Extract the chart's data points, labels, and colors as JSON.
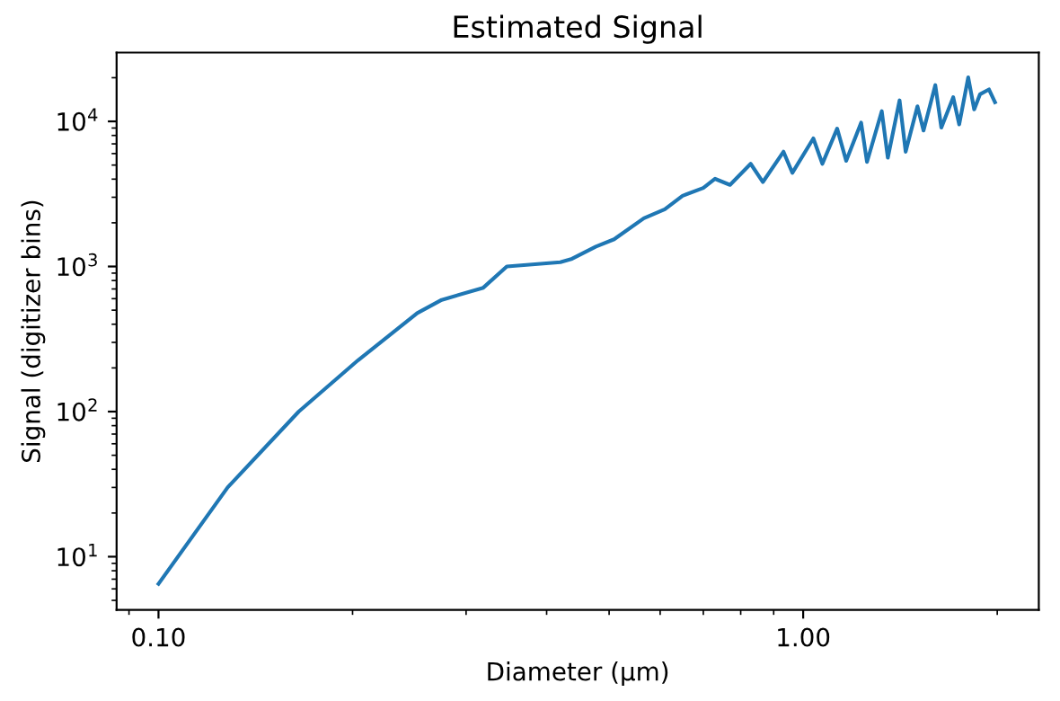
{
  "chart_data": {
    "type": "line",
    "title": "Estimated Signal",
    "xlabel": "Diameter (µm)",
    "ylabel": "Signal (digitizer bins)",
    "log": "xy",
    "x": [
      0.1,
      0.128,
      0.165,
      0.204,
      0.252,
      0.275,
      0.319,
      0.347,
      0.42,
      0.438,
      0.477,
      0.509,
      0.566,
      0.61,
      0.65,
      0.7,
      0.73,
      0.77,
      0.829,
      0.866,
      0.932,
      0.962,
      1.037,
      1.071,
      1.129,
      1.166,
      1.23,
      1.256,
      1.324,
      1.353,
      1.411,
      1.442,
      1.504,
      1.537,
      1.603,
      1.638,
      1.709,
      1.746,
      1.803,
      1.842,
      1.881,
      1.942,
      1.984
    ],
    "series": [
      {
        "color": "#1f77b4",
        "values": [
          6.5,
          30,
          100,
          226,
          477,
          589,
          714,
          1000,
          1070,
          1130,
          1370,
          1540,
          2150,
          2480,
          3070,
          3480,
          4020,
          3650,
          5100,
          3820,
          6180,
          4420,
          7630,
          5100,
          8910,
          5350,
          9800,
          5250,
          11750,
          5620,
          13960,
          6180,
          12700,
          8660,
          17780,
          9070,
          14670,
          9530,
          20100,
          12090,
          15400,
          16600,
          13570
        ]
      }
    ],
    "xlim": [
      0.0861,
      2.32
    ],
    "ylim": [
      4.3,
      29800
    ],
    "xticks": [
      {
        "value": 0.1,
        "label": "0.10"
      },
      {
        "value": 1,
        "label": "1.00"
      }
    ],
    "yticks": [
      {
        "value": 10,
        "label": "10$^{1}$"
      },
      {
        "value": 100,
        "label": "10$^{2}$"
      },
      {
        "value": 1000,
        "label": "10$^{3}$"
      },
      {
        "value": 10000,
        "label": "10$^{4}$"
      }
    ],
    "grid": false
  }
}
